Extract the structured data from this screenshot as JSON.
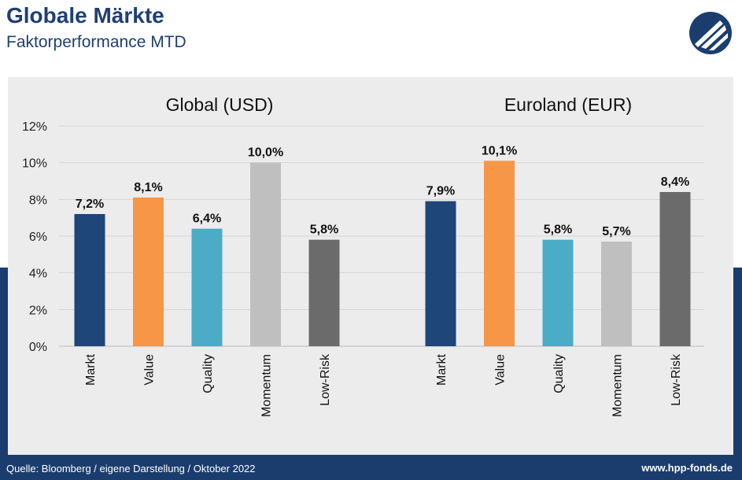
{
  "header": {
    "title": "Globale Märkte",
    "subtitle": "Faktorperformance MTD",
    "logo_icon": "hpp-logo-icon"
  },
  "footer": {
    "source": "Quelle: Bloomberg / eigene Darstellung / Oktober 2022",
    "website": "www.hpp-fonds.de"
  },
  "colors": {
    "brand_navy": "#1b3d6e",
    "panel_gray": "#ececec",
    "markt": "#1f4678",
    "value": "#f79646",
    "quality": "#4bacc6",
    "momentum": "#bfbfbf",
    "low_risk": "#6b6b6b"
  },
  "chart_data": [
    {
      "type": "bar",
      "title": "Global (USD)",
      "categories": [
        "Markt",
        "Value",
        "Quality",
        "Momentum",
        "Low-Risk"
      ],
      "values": [
        7.2,
        8.1,
        6.4,
        10.0,
        5.8
      ],
      "value_labels": [
        "7,2%",
        "8,1%",
        "6,4%",
        "10,0%",
        "5,8%"
      ],
      "colors": [
        "#1f4678",
        "#f79646",
        "#4bacc6",
        "#bfbfbf",
        "#6b6b6b"
      ],
      "ylim": [
        0,
        12
      ],
      "yticks": [
        0,
        2,
        4,
        6,
        8,
        10,
        12
      ],
      "ytick_labels": [
        "0%",
        "2%",
        "4%",
        "6%",
        "8%",
        "10%",
        "12%"
      ],
      "grid": true
    },
    {
      "type": "bar",
      "title": "Euroland (EUR)",
      "categories": [
        "Markt",
        "Value",
        "Quality",
        "Momentum",
        "Low-Risk"
      ],
      "values": [
        7.9,
        10.1,
        5.8,
        5.7,
        8.4
      ],
      "value_labels": [
        "7,9%",
        "10,1%",
        "5,8%",
        "5,7%",
        "8,4%"
      ],
      "colors": [
        "#1f4678",
        "#f79646",
        "#4bacc6",
        "#bfbfbf",
        "#6b6b6b"
      ],
      "ylim": [
        0,
        12
      ],
      "grid": true
    }
  ]
}
